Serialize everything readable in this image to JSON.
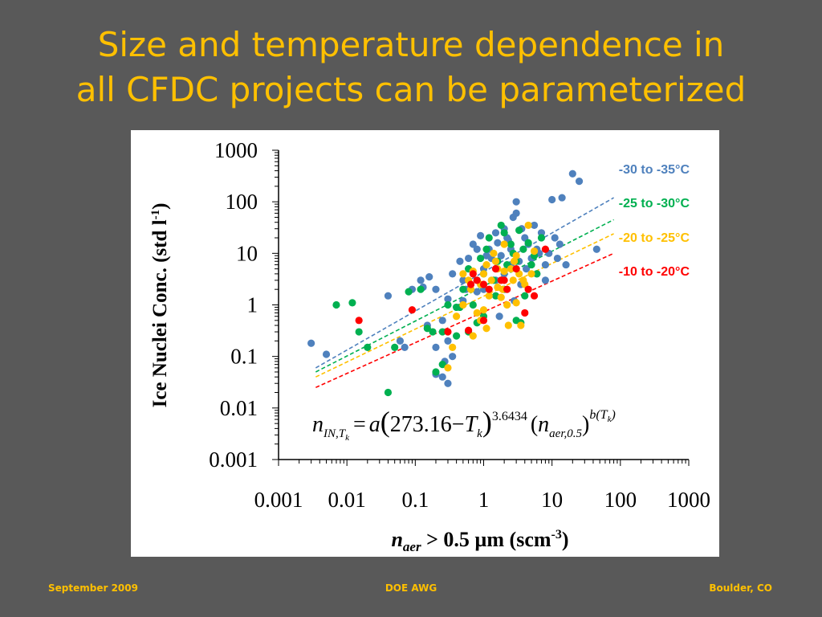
{
  "slide": {
    "title_line1": "Size and temperature dependence in",
    "title_line2": "all CFDC projects can be parameterized",
    "footer_left": "September 2009",
    "footer_center": "DOE AWG",
    "footer_right": "Boulder, CO"
  },
  "colors": {
    "background": "#595959",
    "title": "#FFC000",
    "blue": "#4F81BD",
    "green": "#00B050",
    "orange": "#FFC000",
    "red": "#FF0000"
  },
  "chart_data": {
    "type": "scatter",
    "title": "",
    "xscale": "log",
    "yscale": "log",
    "xlim": [
      0.001,
      1000
    ],
    "ylim": [
      0.001,
      1000
    ],
    "xticks": [
      "0.001",
      "0.01",
      "0.1",
      "1",
      "10",
      "100",
      "1000"
    ],
    "yticks": [
      "0.001",
      "0.01",
      "0.1",
      "1",
      "10",
      "100",
      "1000"
    ],
    "ylabel": {
      "main": "Ice Nuclei Conc. (std l",
      "sup": "-1",
      "end": ")"
    },
    "xlabel": {
      "var": "n",
      "sub": "aer",
      "main": " > 0.5 µm (scm",
      "sup": "-3",
      "end": ")"
    },
    "equation": {
      "lhs": "n",
      "lhs_sub": "IN,T",
      "lhs_subsub": "k",
      "eq": "=",
      "a": "a",
      "lparen": "(",
      "num": "273.16",
      "minus": "−",
      "T": "T",
      "T_sub": "k",
      "rparen": ")",
      "exp": "3.6434",
      "paren2_open": "(",
      "n2": "n",
      "n2_sub": "aer,0.5",
      "paren2_close": ")",
      "exp2": "b(T",
      "exp2_sub": "k",
      "exp2_end": ")"
    },
    "series": [
      {
        "name": "-30 to -35°C",
        "color": "#4F81BD",
        "fit": {
          "x": [
            0.0035,
            80
          ],
          "y": [
            0.06,
            120
          ]
        },
        "points": [
          [
            0.003,
            0.18
          ],
          [
            0.005,
            0.11
          ],
          [
            0.06,
            0.2
          ],
          [
            0.07,
            0.15
          ],
          [
            0.09,
            2
          ],
          [
            0.13,
            2.2
          ],
          [
            0.16,
            3.5
          ],
          [
            0.2,
            0.15
          ],
          [
            0.2,
            0.045
          ],
          [
            0.25,
            0.04
          ],
          [
            0.25,
            0.5
          ],
          [
            0.27,
            0.08
          ],
          [
            0.3,
            1.3
          ],
          [
            0.35,
            4
          ],
          [
            0.3,
            0.2
          ],
          [
            0.45,
            7
          ],
          [
            0.5,
            3
          ],
          [
            0.5,
            1.2
          ],
          [
            0.6,
            8
          ],
          [
            0.7,
            15
          ],
          [
            0.8,
            12
          ],
          [
            0.9,
            22
          ],
          [
            1,
            5
          ],
          [
            1,
            2
          ],
          [
            1.2,
            12
          ],
          [
            1.3,
            8
          ],
          [
            1.5,
            25
          ],
          [
            1.6,
            16
          ],
          [
            1.8,
            9
          ],
          [
            2,
            4
          ],
          [
            2,
            30
          ],
          [
            2.2,
            20
          ],
          [
            2.5,
            12
          ],
          [
            2.7,
            50
          ],
          [
            3,
            60
          ],
          [
            3,
            100
          ],
          [
            3.3,
            7
          ],
          [
            3.6,
            30
          ],
          [
            4,
            20
          ],
          [
            4.5,
            15
          ],
          [
            5,
            8
          ],
          [
            5.5,
            35
          ],
          [
            6,
            4
          ],
          [
            6.5,
            10
          ],
          [
            7,
            25
          ],
          [
            8,
            6
          ],
          [
            9,
            10
          ],
          [
            10,
            110
          ],
          [
            11,
            20
          ],
          [
            12,
            8
          ],
          [
            13,
            15
          ],
          [
            14,
            120
          ],
          [
            16,
            6
          ],
          [
            20,
            350
          ],
          [
            25,
            250
          ],
          [
            45,
            12
          ],
          [
            0.15,
            0.4
          ],
          [
            0.2,
            2
          ],
          [
            0.35,
            0.1
          ],
          [
            0.12,
            3
          ],
          [
            0.04,
            1.5
          ],
          [
            0.8,
            1.8
          ],
          [
            1.5,
            3
          ],
          [
            2.8,
            1.2
          ],
          [
            3.5,
            2.5
          ],
          [
            0.55,
            2
          ],
          [
            1.1,
            9
          ],
          [
            2.3,
            18
          ],
          [
            4.2,
            5
          ],
          [
            6,
            12
          ],
          [
            8,
            3
          ],
          [
            1.7,
            0.6
          ],
          [
            2.5,
            6
          ],
          [
            0.3,
            0.03
          ]
        ]
      },
      {
        "name": "-25 to -30°C",
        "color": "#00B050",
        "fit": {
          "x": [
            0.0035,
            80
          ],
          "y": [
            0.05,
            45
          ]
        },
        "points": [
          [
            0.007,
            1
          ],
          [
            0.012,
            1.1
          ],
          [
            0.015,
            0.3
          ],
          [
            0.02,
            0.15
          ],
          [
            0.04,
            0.02
          ],
          [
            0.05,
            0.15
          ],
          [
            0.08,
            1.8
          ],
          [
            0.12,
            2
          ],
          [
            0.15,
            0.35
          ],
          [
            0.18,
            0.3
          ],
          [
            0.2,
            0.05
          ],
          [
            0.25,
            0.3
          ],
          [
            0.3,
            1
          ],
          [
            0.4,
            0.9
          ],
          [
            0.4,
            0.25
          ],
          [
            0.5,
            2
          ],
          [
            0.6,
            5
          ],
          [
            0.7,
            1
          ],
          [
            0.8,
            3
          ],
          [
            0.9,
            8
          ],
          [
            1,
            0.6
          ],
          [
            1,
            4
          ],
          [
            1.2,
            20
          ],
          [
            1.4,
            3
          ],
          [
            1.6,
            7
          ],
          [
            1.8,
            35
          ],
          [
            2,
            25
          ],
          [
            2,
            2
          ],
          [
            2.5,
            15
          ],
          [
            2.7,
            10
          ],
          [
            3,
            7
          ],
          [
            3.3,
            28
          ],
          [
            3.8,
            12
          ],
          [
            4,
            1.5
          ],
          [
            4.5,
            16
          ],
          [
            5,
            6
          ],
          [
            5.5,
            9
          ],
          [
            6,
            4
          ],
          [
            7,
            20
          ],
          [
            0.25,
            0.07
          ],
          [
            0.6,
            0.3
          ],
          [
            0.8,
            0.45
          ],
          [
            1.1,
            12
          ],
          [
            1.5,
            1.5
          ],
          [
            2.2,
            6
          ],
          [
            3,
            0.5
          ],
          [
            3.5,
            0.45
          ],
          [
            0.45,
            0.9
          ]
        ]
      },
      {
        "name": "-20 to -25°C",
        "color": "#FFC000",
        "fit": {
          "x": [
            0.0035,
            80
          ],
          "y": [
            0.04,
            24
          ]
        },
        "points": [
          [
            0.35,
            0.15
          ],
          [
            0.4,
            0.6
          ],
          [
            0.5,
            1
          ],
          [
            0.5,
            4
          ],
          [
            0.6,
            3
          ],
          [
            0.65,
            2
          ],
          [
            0.7,
            0.25
          ],
          [
            0.8,
            0.7
          ],
          [
            0.9,
            2.5
          ],
          [
            1,
            0.8
          ],
          [
            1,
            4
          ],
          [
            1.1,
            6
          ],
          [
            1.2,
            1.5
          ],
          [
            1.3,
            3
          ],
          [
            1.4,
            10
          ],
          [
            1.5,
            7
          ],
          [
            1.6,
            2.2
          ],
          [
            1.8,
            1.4
          ],
          [
            2,
            4.5
          ],
          [
            2,
            15
          ],
          [
            2.2,
            1
          ],
          [
            2.5,
            5
          ],
          [
            2.7,
            3
          ],
          [
            3,
            1.1
          ],
          [
            3,
            9
          ],
          [
            3.3,
            4
          ],
          [
            3.5,
            0.4
          ],
          [
            4,
            2.5
          ],
          [
            4.5,
            35
          ],
          [
            5,
            4
          ],
          [
            5.5,
            11
          ],
          [
            1.1,
            0.35
          ],
          [
            2.3,
            0.4
          ],
          [
            0.3,
            0.06
          ],
          [
            0.9,
            0.5
          ],
          [
            1.6,
            5
          ],
          [
            2.8,
            7
          ],
          [
            3.8,
            3
          ],
          [
            0.7,
            4.5
          ],
          [
            1.9,
            2
          ]
        ]
      },
      {
        "name": "-10 to -20°C",
        "color": "#FF0000",
        "fit": {
          "x": [
            0.0035,
            80
          ],
          "y": [
            0.025,
            10
          ]
        },
        "points": [
          [
            0.015,
            0.5
          ],
          [
            0.09,
            0.8
          ],
          [
            0.3,
            0.3
          ],
          [
            0.6,
            0.32
          ],
          [
            0.7,
            4
          ],
          [
            0.8,
            3
          ],
          [
            1,
            0.5
          ],
          [
            1,
            2.5
          ],
          [
            1.2,
            2
          ],
          [
            1.5,
            5
          ],
          [
            1.8,
            3
          ],
          [
            2.2,
            2
          ],
          [
            3,
            5
          ],
          [
            4,
            0.7
          ],
          [
            4.5,
            2
          ],
          [
            5.5,
            1.5
          ],
          [
            8,
            12
          ],
          [
            0.65,
            2.5
          ],
          [
            2,
            3
          ]
        ]
      }
    ]
  }
}
